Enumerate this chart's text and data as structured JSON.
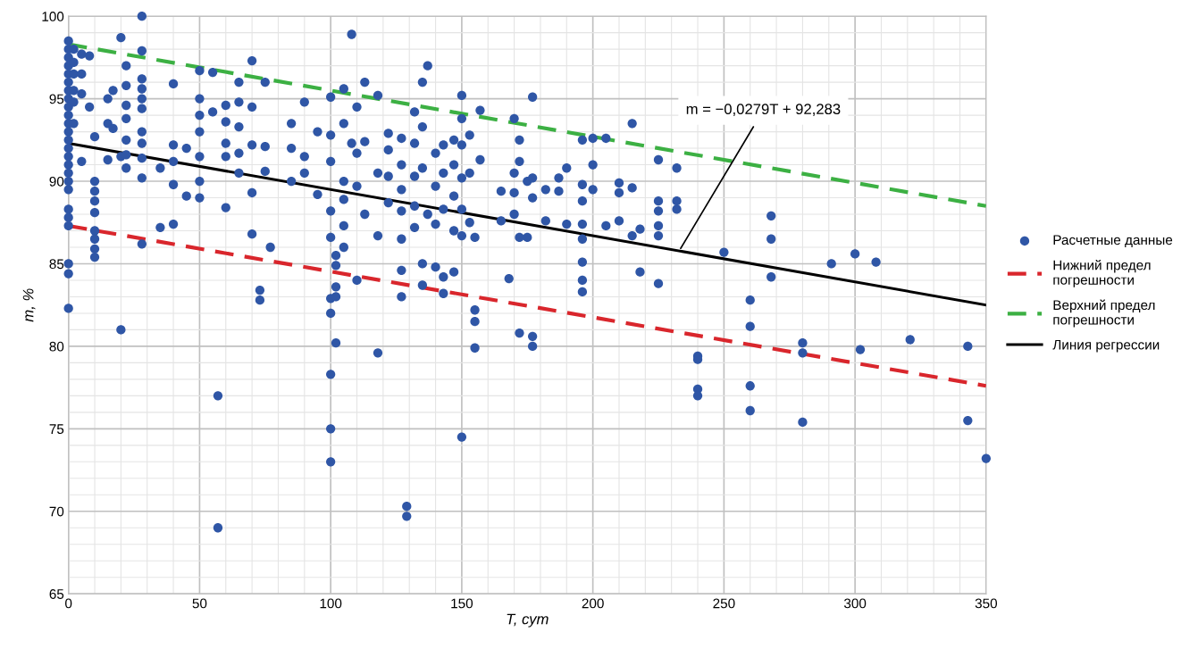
{
  "chart_data": {
    "type": "scatter",
    "xlabel": "T, сут",
    "ylabel": "m, %",
    "xlim": [
      0,
      350
    ],
    "ylim": [
      65,
      100
    ],
    "xticks": [
      0,
      50,
      100,
      150,
      200,
      250,
      300,
      350
    ],
    "yticks": [
      65,
      70,
      75,
      80,
      85,
      90,
      95,
      100
    ],
    "grid": true,
    "legend": "right",
    "marker": "circle",
    "annotations": [
      {
        "text": "m = −0,0279T + 92,283",
        "x": 233,
        "y": 85.8
      }
    ],
    "series": [
      {
        "name": "Расчетные данные",
        "color": "#2f56a6",
        "x": [
          0,
          0,
          0,
          0,
          0,
          0,
          0,
          0,
          0,
          0,
          0,
          0,
          0,
          0,
          0,
          0,
          0,
          0,
          0,
          0,
          0,
          0,
          0,
          0,
          0,
          2,
          2,
          2,
          2,
          2,
          2,
          5,
          5,
          5,
          5,
          8,
          8,
          10,
          10,
          10,
          10,
          10,
          10,
          10,
          10,
          10,
          15,
          15,
          15,
          17,
          17,
          20,
          20,
          20,
          22,
          22,
          22,
          22,
          22,
          22,
          22,
          28,
          28,
          28,
          28,
          28,
          28,
          28,
          28,
          28,
          28,
          28,
          35,
          35,
          40,
          40,
          40,
          40,
          40,
          45,
          45,
          50,
          50,
          50,
          50,
          50,
          50,
          50,
          55,
          55,
          57,
          57,
          60,
          60,
          60,
          60,
          60,
          65,
          65,
          65,
          65,
          65,
          70,
          70,
          70,
          70,
          70,
          73,
          73,
          75,
          75,
          75,
          77,
          85,
          85,
          85,
          90,
          90,
          90,
          95,
          95,
          100,
          100,
          100,
          100,
          100,
          100,
          100,
          100,
          100,
          100,
          102,
          102,
          102,
          102,
          102,
          105,
          105,
          105,
          105,
          105,
          105,
          108,
          108,
          110,
          110,
          110,
          110,
          113,
          113,
          113,
          118,
          118,
          118,
          118,
          122,
          122,
          122,
          122,
          127,
          127,
          127,
          127,
          127,
          127,
          127,
          129,
          129,
          132,
          132,
          132,
          132,
          132,
          135,
          135,
          135,
          135,
          135,
          137,
          137,
          140,
          140,
          140,
          140,
          143,
          143,
          143,
          143,
          143,
          147,
          147,
          147,
          147,
          147,
          150,
          150,
          150,
          150,
          150,
          150,
          150,
          153,
          153,
          153,
          155,
          155,
          155,
          155,
          157,
          157,
          165,
          165,
          168,
          170,
          170,
          170,
          170,
          172,
          172,
          172,
          172,
          175,
          175,
          177,
          177,
          177,
          177,
          177,
          182,
          182,
          187,
          187,
          190,
          190,
          196,
          196,
          196,
          196,
          196,
          196,
          196,
          196,
          200,
          200,
          200,
          205,
          205,
          210,
          210,
          210,
          215,
          215,
          215,
          218,
          218,
          225,
          225,
          225,
          225,
          225,
          225,
          232,
          232,
          232,
          240,
          240,
          240,
          240,
          250,
          260,
          260,
          260,
          260,
          268,
          268,
          268,
          280,
          280,
          280,
          291,
          300,
          302,
          308,
          321,
          343,
          343,
          350
        ],
        "values": [
          98.5,
          98,
          97.5,
          97,
          96.5,
          96,
          95.5,
          95,
          94.5,
          94,
          93.5,
          93,
          92.5,
          92,
          91.5,
          91,
          90.5,
          90,
          89.5,
          88.3,
          87.8,
          87.3,
          85,
          84.4,
          82.3,
          98,
          97.2,
          96.5,
          95.5,
          94.8,
          93.5,
          97.7,
          96.5,
          95.3,
          91.2,
          97.6,
          94.5,
          92.7,
          90,
          89.4,
          88.8,
          88.1,
          87,
          86.5,
          85.9,
          85.4,
          95,
          93.5,
          91.3,
          95.5,
          93.2,
          98.7,
          81,
          91.5,
          97,
          95.8,
          94.6,
          93.8,
          92.5,
          91.6,
          90.8,
          100,
          97.9,
          96.2,
          95.6,
          95,
          94.4,
          93,
          92.3,
          91.4,
          90.2,
          86.2,
          90.8,
          87.2,
          95.9,
          92.2,
          91.2,
          89.8,
          87.4,
          89.1,
          92,
          96.7,
          95,
          94,
          93,
          91.5,
          90,
          89,
          96.6,
          94.2,
          77,
          69,
          94.6,
          93.6,
          92.3,
          91.5,
          88.4,
          96,
          94.8,
          93.3,
          91.7,
          90.5,
          97.3,
          94.5,
          92.2,
          89.3,
          86.8,
          83.4,
          82.8,
          96,
          92.1,
          90.6,
          86,
          93.5,
          92,
          90,
          94.8,
          91.5,
          90.5,
          93,
          89.2,
          95.1,
          92.8,
          91.2,
          88.2,
          86.6,
          82.9,
          82,
          78.3,
          75,
          73,
          85.5,
          84.9,
          83.6,
          83,
          80.2,
          95.6,
          93.5,
          90,
          88.9,
          87.3,
          86,
          98.9,
          92.3,
          94.5,
          91.7,
          89.7,
          84,
          96,
          92.4,
          88,
          95.2,
          90.5,
          86.7,
          79.6,
          92.9,
          91.9,
          90.3,
          88.7,
          92.6,
          91,
          89.5,
          88.2,
          86.5,
          84.6,
          83,
          70.3,
          69.7,
          94.2,
          92.3,
          90.3,
          88.5,
          87.2,
          96,
          93.3,
          90.8,
          85,
          83.7,
          97,
          88,
          91.7,
          89.7,
          87.4,
          84.8,
          92.2,
          90.5,
          88.3,
          84.2,
          83.2,
          92.5,
          91,
          89.1,
          87,
          84.5,
          95.2,
          93.8,
          92.2,
          90.2,
          88.3,
          86.7,
          74.5,
          92.8,
          90.5,
          87.5,
          86.6,
          82.2,
          81.5,
          79.9,
          94.3,
          91.3,
          89.4,
          87.6,
          84.1,
          93.8,
          90.5,
          89.3,
          88,
          92.5,
          91.2,
          86.6,
          80.8,
          90,
          86.6,
          95.1,
          90.2,
          89,
          80.6,
          80,
          89.5,
          87.6,
          90.2,
          89.4,
          90.8,
          87.4,
          92.5,
          89.8,
          88.8,
          87.4,
          85.1,
          84,
          83.3,
          86.5,
          92.6,
          91,
          89.5,
          92.6,
          87.3,
          89.9,
          89.3,
          87.6,
          93.5,
          89.6,
          86.7,
          84.5,
          87.1,
          91.3,
          88.8,
          88.2,
          87.3,
          86.7,
          83.8,
          90.8,
          88.8,
          88.3,
          79.4,
          79.2,
          77.4,
          77,
          85.7,
          82.8,
          81.2,
          77.6,
          76.1,
          87.9,
          86.5,
          84.2,
          80.2,
          79.6,
          75.4,
          85,
          85.6,
          79.8,
          85.1,
          80.4,
          80,
          75.5,
          73.2
        ]
      },
      {
        "name": "Нижний предел погрешности",
        "type": "line",
        "marker": "none",
        "line_style": "dashed",
        "color": "#d9262c",
        "x": [
          0,
          350
        ],
        "values": [
          87.3,
          77.6
        ]
      },
      {
        "name": "Верхний предел погрешности",
        "type": "line",
        "marker": "none",
        "line_style": "dashed",
        "color": "#3cb043",
        "x": [
          0,
          350
        ],
        "values": [
          98.3,
          88.5
        ]
      },
      {
        "name": "Линия регрессии",
        "type": "line",
        "marker": "none",
        "line_style": "solid",
        "color": "#000000",
        "x": [
          0,
          350
        ],
        "values": [
          92.3,
          82.5
        ]
      }
    ]
  }
}
